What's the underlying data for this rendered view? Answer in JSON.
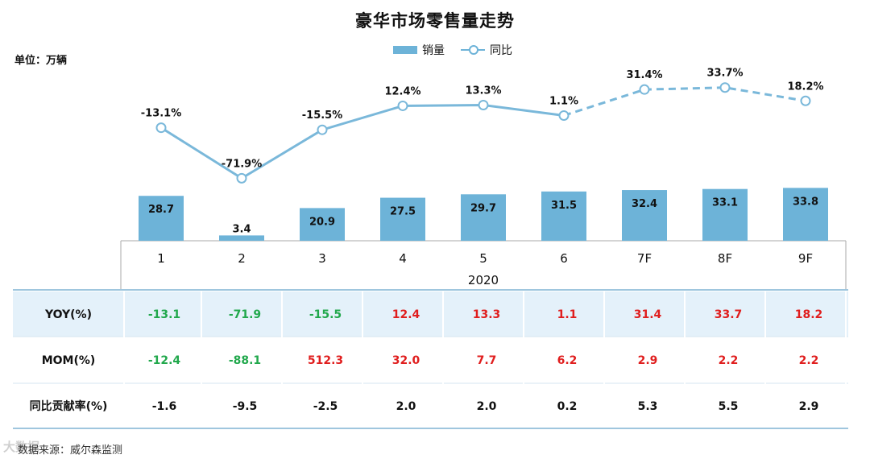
{
  "title": "豪华市场零售量走势",
  "unit": "单位：万辆",
  "legend": {
    "bar": "销量",
    "line": "同比"
  },
  "source": "数据来源：威尔森监测",
  "watermark": "大数据",
  "colors": {
    "bar": "#6db3d8",
    "line": "#7ab8da",
    "neg": "#21a84c",
    "pos": "#e01e1e",
    "row_bg": "#e4f1fa",
    "grid": "#9fc6de"
  },
  "chart_data": {
    "type": "bar",
    "categories": [
      "1",
      "2",
      "3",
      "4",
      "5",
      "6",
      "7F",
      "8F",
      "9F"
    ],
    "group_label": "2020",
    "series": [
      {
        "name": "销量",
        "type": "bar",
        "values": [
          28.7,
          3.4,
          20.9,
          27.5,
          29.7,
          31.5,
          32.4,
          33.1,
          33.8
        ],
        "labels": [
          "28.7",
          "3.4",
          "20.9",
          "27.5",
          "29.7",
          "31.5",
          "32.4",
          "33.1",
          "33.8"
        ]
      },
      {
        "name": "同比",
        "type": "line",
        "axis": "secondary",
        "values": [
          -13.1,
          -71.9,
          -15.5,
          12.4,
          13.3,
          1.1,
          31.4,
          33.7,
          18.2
        ],
        "labels": [
          "-13.1%",
          "-71.9%",
          "-15.5%",
          "12.4%",
          "13.3%",
          "1.1%",
          "31.4%",
          "33.7%",
          "18.2%"
        ],
        "dashed_from_index": 5
      }
    ],
    "table": {
      "rows": [
        {
          "label": "YOY(%)",
          "values": [
            "-13.1",
            "-71.9",
            "-15.5",
            "12.4",
            "13.3",
            "1.1",
            "31.4",
            "33.7",
            "18.2"
          ]
        },
        {
          "label": "MOM(%)",
          "values": [
            "-12.4",
            "-88.1",
            "512.3",
            "32.0",
            "7.7",
            "6.2",
            "2.9",
            "2.2",
            "2.2"
          ]
        },
        {
          "label": "同比贡献率(%)",
          "values": [
            "-1.6",
            "-9.5",
            "-2.5",
            "2.0",
            "2.0",
            "0.2",
            "5.3",
            "5.5",
            "2.9"
          ]
        }
      ]
    }
  }
}
